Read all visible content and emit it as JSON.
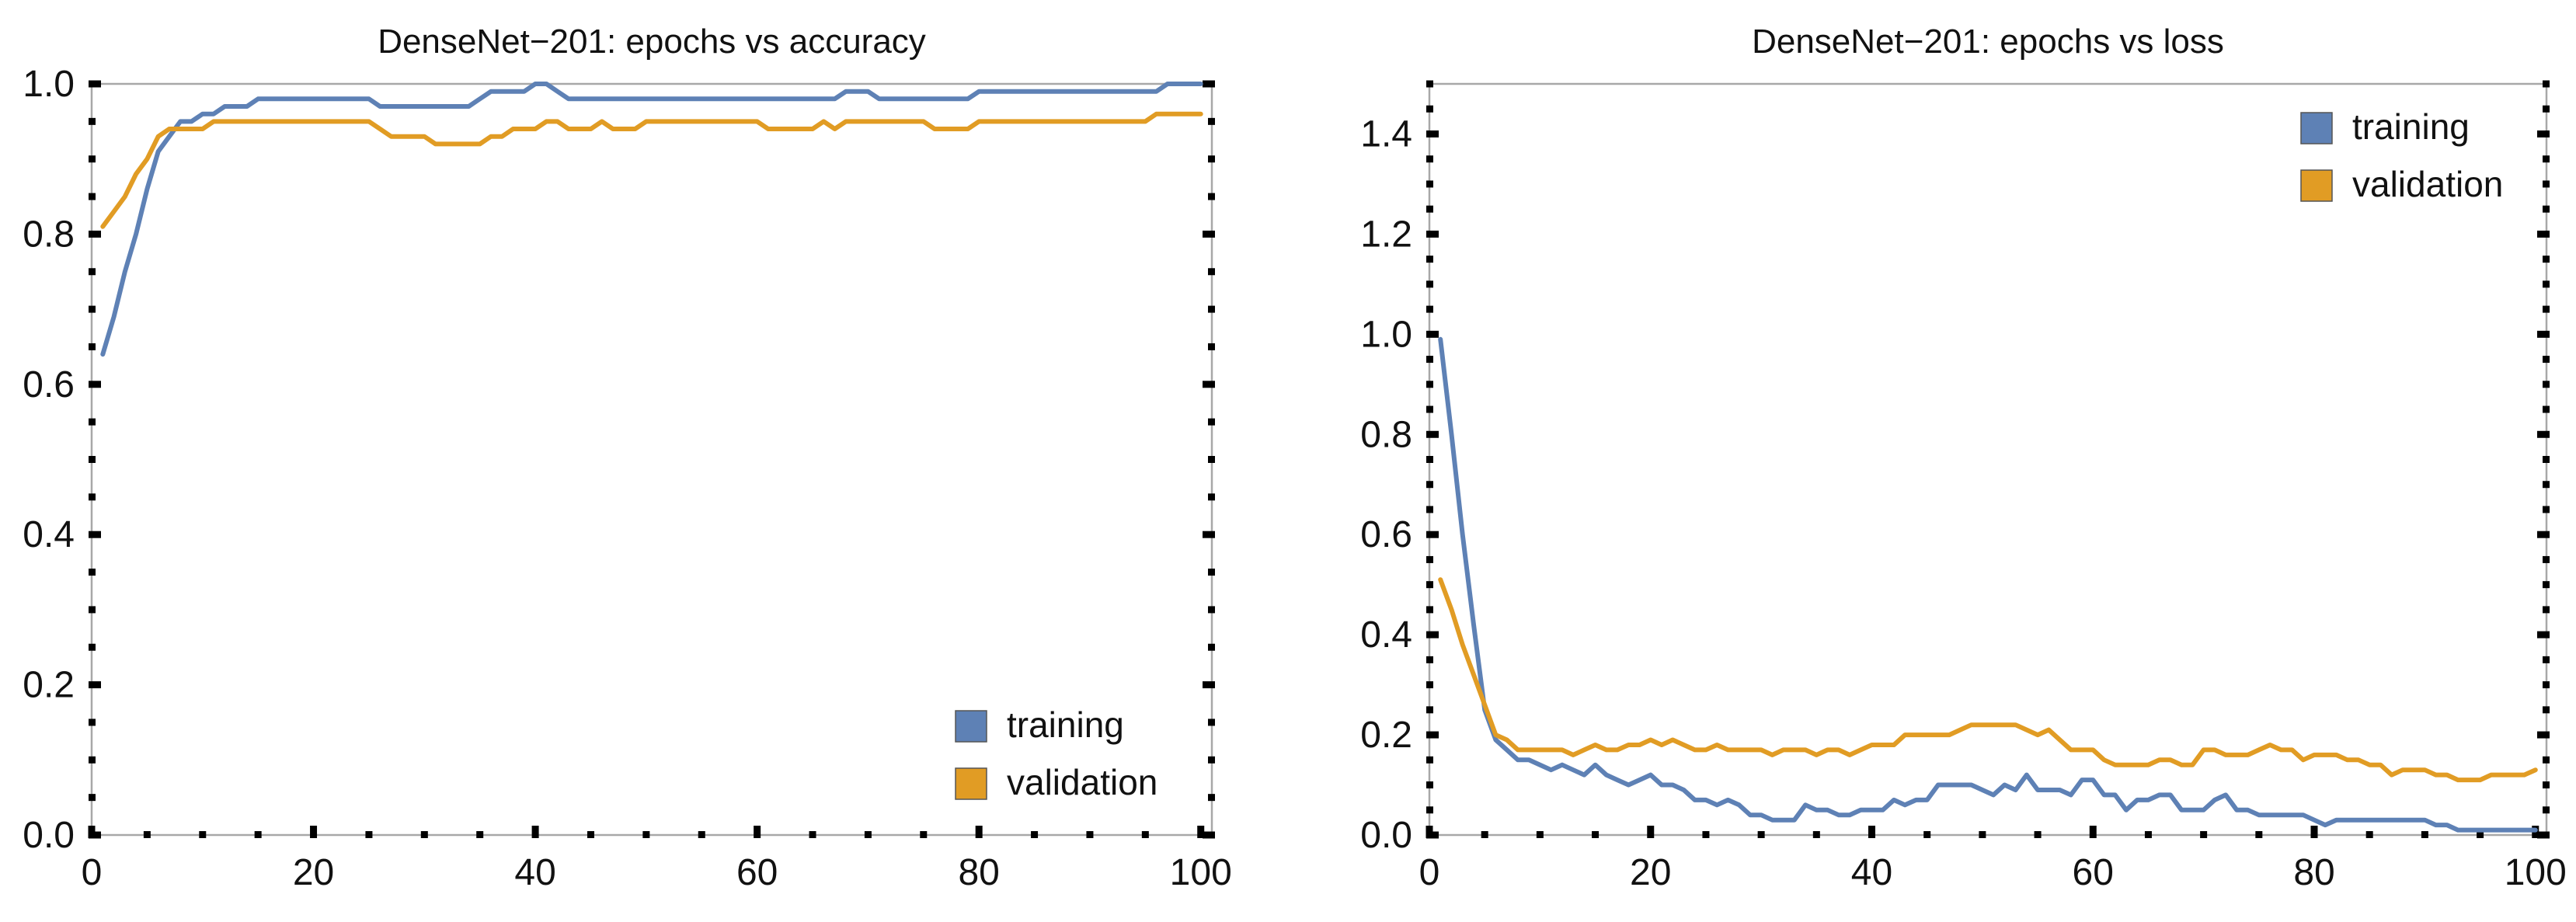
{
  "chart_data": [
    {
      "type": "line",
      "title": "DenseNet−201: epochs vs accuracy",
      "xlabel": "",
      "ylabel": "",
      "xlim": [
        0,
        101
      ],
      "ylim": [
        0,
        1
      ],
      "xticks": [
        0,
        20,
        40,
        60,
        80,
        100
      ],
      "yticks": [
        0.0,
        0.2,
        0.4,
        0.6,
        0.8,
        1.0
      ],
      "xtick_labels": [
        "0",
        "20",
        "40",
        "60",
        "80",
        "100"
      ],
      "ytick_labels": [
        "0.0",
        "0.2",
        "0.4",
        "0.6",
        "0.8",
        "1.0"
      ],
      "legend_position": "bottom-right",
      "series": [
        {
          "name": "training",
          "color": "#5e81b5",
          "x": [
            1,
            2,
            3,
            4,
            5,
            6,
            7,
            8,
            9,
            10,
            11,
            12,
            13,
            14,
            15,
            20,
            25,
            26,
            30,
            34,
            35,
            36,
            37,
            38,
            39,
            40,
            41,
            42,
            43,
            45,
            50,
            55,
            60,
            67,
            68,
            69,
            70,
            71,
            75,
            79,
            80,
            85,
            90,
            95,
            96,
            97,
            98,
            99,
            100
          ],
          "y": [
            0.64,
            0.69,
            0.75,
            0.8,
            0.86,
            0.91,
            0.93,
            0.95,
            0.95,
            0.96,
            0.96,
            0.97,
            0.97,
            0.97,
            0.98,
            0.98,
            0.98,
            0.97,
            0.97,
            0.97,
            0.98,
            0.99,
            0.99,
            0.99,
            0.99,
            1.0,
            1.0,
            0.99,
            0.98,
            0.98,
            0.98,
            0.98,
            0.98,
            0.98,
            0.99,
            0.99,
            0.99,
            0.98,
            0.98,
            0.98,
            0.99,
            0.99,
            0.99,
            0.99,
            0.99,
            1.0,
            1.0,
            1.0,
            1.0
          ]
        },
        {
          "name": "validation",
          "color": "#e19c24",
          "x": [
            1,
            2,
            3,
            4,
            5,
            6,
            7,
            8,
            9,
            10,
            11,
            12,
            20,
            25,
            26,
            27,
            28,
            29,
            30,
            31,
            32,
            33,
            34,
            35,
            36,
            37,
            38,
            39,
            40,
            41,
            42,
            43,
            44,
            45,
            46,
            47,
            48,
            49,
            50,
            55,
            60,
            61,
            62,
            63,
            64,
            65,
            66,
            67,
            68,
            75,
            76,
            77,
            78,
            79,
            80,
            85,
            90,
            95,
            96,
            100
          ],
          "y": [
            0.81,
            0.83,
            0.85,
            0.88,
            0.9,
            0.93,
            0.94,
            0.94,
            0.94,
            0.94,
            0.95,
            0.95,
            0.95,
            0.95,
            0.94,
            0.93,
            0.93,
            0.93,
            0.93,
            0.92,
            0.92,
            0.92,
            0.92,
            0.92,
            0.93,
            0.93,
            0.94,
            0.94,
            0.94,
            0.95,
            0.95,
            0.94,
            0.94,
            0.94,
            0.95,
            0.94,
            0.94,
            0.94,
            0.95,
            0.95,
            0.95,
            0.94,
            0.94,
            0.94,
            0.94,
            0.94,
            0.95,
            0.94,
            0.95,
            0.95,
            0.94,
            0.94,
            0.94,
            0.94,
            0.95,
            0.95,
            0.95,
            0.95,
            0.96,
            0.96
          ]
        }
      ]
    },
    {
      "type": "line",
      "title": "DenseNet−201: epochs vs loss",
      "xlabel": "",
      "ylabel": "",
      "xlim": [
        0,
        101
      ],
      "ylim": [
        0,
        1.5
      ],
      "xticks": [
        0,
        20,
        40,
        60,
        80,
        100
      ],
      "yticks": [
        0.0,
        0.2,
        0.4,
        0.6,
        0.8,
        1.0,
        1.2,
        1.4
      ],
      "xtick_labels": [
        "0",
        "20",
        "40",
        "60",
        "80",
        "100"
      ],
      "ytick_labels": [
        "0.0",
        "0.2",
        "0.4",
        "0.6",
        "0.8",
        "1.0",
        "1.2",
        "1.4"
      ],
      "legend_position": "top-right",
      "series": [
        {
          "name": "training",
          "color": "#5e81b5",
          "x": [
            1,
            2,
            3,
            4,
            5,
            6,
            7,
            8,
            9,
            10,
            11,
            12,
            13,
            14,
            15,
            16,
            17,
            18,
            19,
            20,
            21,
            22,
            23,
            24,
            25,
            26,
            27,
            28,
            29,
            30,
            31,
            32,
            33,
            34,
            35,
            36,
            37,
            38,
            39,
            40,
            41,
            42,
            43,
            44,
            45,
            46,
            47,
            48,
            49,
            50,
            51,
            52,
            53,
            54,
            55,
            56,
            57,
            58,
            59,
            60,
            61,
            62,
            63,
            64,
            65,
            66,
            67,
            68,
            69,
            70,
            71,
            72,
            73,
            74,
            75,
            76,
            77,
            78,
            79,
            80,
            81,
            82,
            83,
            84,
            85,
            86,
            87,
            88,
            89,
            90,
            91,
            92,
            93,
            94,
            95,
            96,
            97,
            98,
            99,
            100
          ],
          "y": [
            0.99,
            0.8,
            0.6,
            0.42,
            0.25,
            0.19,
            0.17,
            0.15,
            0.15,
            0.14,
            0.13,
            0.14,
            0.13,
            0.12,
            0.14,
            0.12,
            0.11,
            0.1,
            0.11,
            0.12,
            0.1,
            0.1,
            0.09,
            0.07,
            0.07,
            0.06,
            0.07,
            0.06,
            0.04,
            0.04,
            0.03,
            0.03,
            0.03,
            0.06,
            0.05,
            0.05,
            0.04,
            0.04,
            0.05,
            0.05,
            0.05,
            0.07,
            0.06,
            0.07,
            0.07,
            0.1,
            0.1,
            0.1,
            0.1,
            0.09,
            0.08,
            0.1,
            0.09,
            0.12,
            0.09,
            0.09,
            0.09,
            0.08,
            0.11,
            0.11,
            0.08,
            0.08,
            0.05,
            0.07,
            0.07,
            0.08,
            0.08,
            0.05,
            0.05,
            0.05,
            0.07,
            0.08,
            0.05,
            0.05,
            0.04,
            0.04,
            0.04,
            0.04,
            0.04,
            0.03,
            0.02,
            0.03,
            0.03,
            0.03,
            0.03,
            0.03,
            0.03,
            0.03,
            0.03,
            0.03,
            0.02,
            0.02,
            0.01,
            0.01,
            0.01,
            0.01,
            0.01,
            0.01,
            0.01,
            0.01
          ]
        },
        {
          "name": "validation",
          "color": "#e19c24",
          "x": [
            1,
            2,
            3,
            4,
            5,
            6,
            7,
            8,
            9,
            10,
            11,
            12,
            13,
            14,
            15,
            16,
            17,
            18,
            19,
            20,
            21,
            22,
            23,
            24,
            25,
            26,
            27,
            28,
            29,
            30,
            31,
            32,
            33,
            34,
            35,
            36,
            37,
            38,
            39,
            40,
            41,
            42,
            43,
            44,
            45,
            46,
            47,
            48,
            49,
            50,
            51,
            52,
            53,
            54,
            55,
            56,
            57,
            58,
            59,
            60,
            61,
            62,
            63,
            64,
            65,
            66,
            67,
            68,
            69,
            70,
            71,
            72,
            73,
            74,
            75,
            76,
            77,
            78,
            79,
            80,
            81,
            82,
            83,
            84,
            85,
            86,
            87,
            88,
            89,
            90,
            91,
            92,
            93,
            94,
            95,
            96,
            97,
            98,
            99,
            100
          ],
          "y": [
            0.51,
            0.45,
            0.38,
            0.32,
            0.26,
            0.2,
            0.19,
            0.17,
            0.17,
            0.17,
            0.17,
            0.17,
            0.16,
            0.17,
            0.18,
            0.17,
            0.17,
            0.18,
            0.18,
            0.19,
            0.18,
            0.19,
            0.18,
            0.17,
            0.17,
            0.18,
            0.17,
            0.17,
            0.17,
            0.17,
            0.16,
            0.17,
            0.17,
            0.17,
            0.16,
            0.17,
            0.17,
            0.16,
            0.17,
            0.18,
            0.18,
            0.18,
            0.2,
            0.2,
            0.2,
            0.2,
            0.2,
            0.21,
            0.22,
            0.22,
            0.22,
            0.22,
            0.22,
            0.21,
            0.2,
            0.21,
            0.19,
            0.17,
            0.17,
            0.17,
            0.15,
            0.14,
            0.14,
            0.14,
            0.14,
            0.15,
            0.15,
            0.14,
            0.14,
            0.17,
            0.17,
            0.16,
            0.16,
            0.16,
            0.17,
            0.18,
            0.17,
            0.17,
            0.15,
            0.16,
            0.16,
            0.16,
            0.15,
            0.15,
            0.14,
            0.14,
            0.12,
            0.13,
            0.13,
            0.13,
            0.12,
            0.12,
            0.11,
            0.11,
            0.11,
            0.12,
            0.12,
            0.12,
            0.12,
            0.13
          ]
        }
      ]
    }
  ]
}
